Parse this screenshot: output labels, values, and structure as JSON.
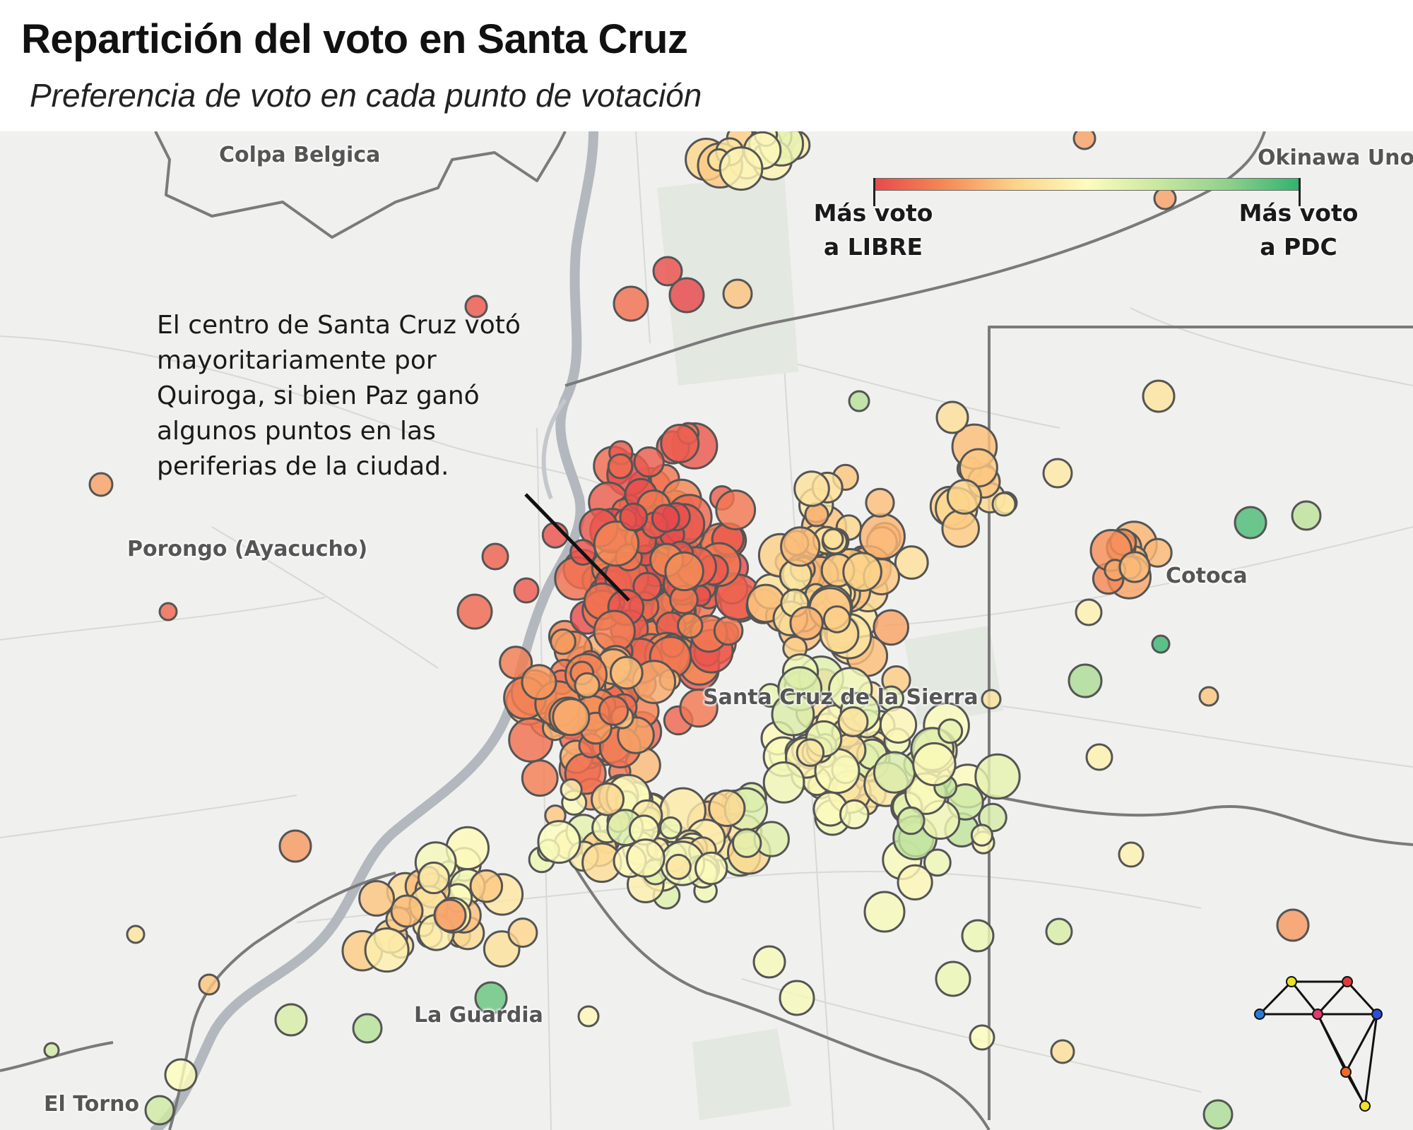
{
  "title": "Repartición del voto en Santa Cruz",
  "subtitle": "Preferencia de voto en cada punto de votación",
  "annotation": "El centro de Santa Cruz votó mayoritariamente por Quiroga, si bien Paz ganó algunos puntos en las periferias de la ciudad.",
  "legend": {
    "left_line1": "Más voto",
    "left_line2": "a LIBRE",
    "right_line1": "Más voto",
    "right_line2": "a PDC",
    "gradient_colors": [
      "#e8484c",
      "#f58a55",
      "#fdd38a",
      "#fdfcbe",
      "#c9e7a0",
      "#8ed08c",
      "#2fb36e"
    ]
  },
  "places": [
    {
      "name": "Colpa Belgica"
    },
    {
      "name": "Okinawa Uno"
    },
    {
      "name": "Porongo (Ayacucho)"
    },
    {
      "name": "Cotoca"
    },
    {
      "name": "Santa Cruz de la Sierra"
    },
    {
      "name": "La Guardia"
    },
    {
      "name": "El Torno"
    }
  ],
  "colors": {
    "map_background": "#f0f0ef",
    "river": "#b3b8be",
    "boundary": "#7a7a7a",
    "libre": "#e8484c",
    "pdc": "#2fb36e"
  },
  "logo_icon": "network-graph-logo"
}
